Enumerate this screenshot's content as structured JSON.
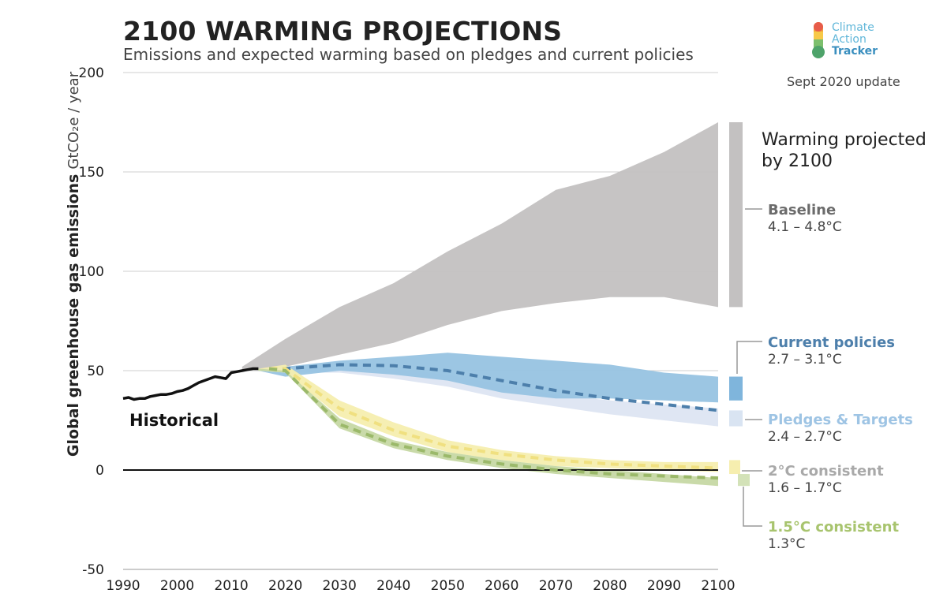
{
  "header": {
    "title": "2100 WARMING PROJECTIONS",
    "subtitle": "Emissions and expected warming based on pledges and current policies"
  },
  "logo": {
    "line1": "Climate",
    "line2": "Action",
    "line3": "Tracker",
    "icon": "thermometer-icon"
  },
  "update_label": "Sept 2020 update",
  "chart_data": {
    "type": "area",
    "ylabel_bold": "Global greenhouse gas emissions",
    "ylabel_unit": "GtCO₂e / year",
    "xlim": [
      1990,
      2100
    ],
    "ylim": [
      -50,
      200
    ],
    "x_ticks": [
      1990,
      2000,
      2010,
      2020,
      2030,
      2040,
      2050,
      2060,
      2070,
      2080,
      2090,
      2100
    ],
    "y_ticks": [
      -50,
      0,
      50,
      100,
      150,
      200
    ],
    "grid": "horizontal",
    "historical": {
      "label": "Historical",
      "color": "#111111",
      "x": [
        1990,
        1991,
        1992,
        1993,
        1994,
        1995,
        1996,
        1997,
        1998,
        1999,
        2000,
        2001,
        2002,
        2003,
        2004,
        2005,
        2006,
        2007,
        2008,
        2009,
        2010,
        2011,
        2012,
        2013,
        2014,
        2015
      ],
      "y": [
        36,
        36.5,
        35.5,
        36,
        36,
        37,
        37.5,
        38,
        38,
        38.5,
        39.5,
        40,
        41,
        42.5,
        44,
        45,
        46,
        47,
        46.5,
        46,
        49,
        49.5,
        50,
        50.5,
        51,
        51
      ]
    },
    "bands": [
      {
        "name": "Baseline",
        "color": "#c3c1c1",
        "x": [
          2012,
          2020,
          2030,
          2040,
          2050,
          2060,
          2070,
          2080,
          2090,
          2100
        ],
        "upper": [
          52,
          66,
          82,
          94,
          110,
          124,
          141,
          148,
          160,
          175
        ],
        "lower": [
          50,
          52,
          58,
          64,
          73,
          80,
          84,
          87,
          87,
          82
        ]
      },
      {
        "name": "Pledges & Targets",
        "color": "#dde5f2",
        "x": [
          2015,
          2020,
          2030,
          2040,
          2050,
          2060,
          2070,
          2080,
          2090,
          2100
        ],
        "upper": [
          51,
          50,
          52,
          51,
          48,
          43,
          38,
          35,
          33,
          31
        ],
        "lower": [
          50,
          49,
          49,
          46,
          42,
          36,
          32,
          28,
          25,
          22
        ]
      },
      {
        "name": "Current policies",
        "color": "#97c3e1",
        "x": [
          2015,
          2020,
          2030,
          2040,
          2050,
          2060,
          2070,
          2080,
          2090,
          2100
        ],
        "upper": [
          51,
          52,
          55,
          57,
          59,
          57,
          55,
          53,
          49,
          47
        ],
        "lower": [
          50,
          47,
          50,
          48,
          45,
          39,
          36,
          36,
          35,
          34
        ]
      },
      {
        "name": "2°C consistent",
        "color": "#f6eeaf",
        "x": [
          2015,
          2020,
          2030,
          2040,
          2050,
          2060,
          2070,
          2080,
          2090,
          2100
        ],
        "upper": [
          51,
          53,
          35,
          24,
          15,
          10,
          7,
          5,
          4,
          4
        ],
        "lower": [
          50,
          49,
          27,
          17,
          9,
          5,
          2,
          1,
          0,
          -1
        ]
      },
      {
        "name": "1.5°C consistent",
        "color": "#c6d8a4",
        "x": [
          2015,
          2020,
          2030,
          2040,
          2050,
          2060,
          2070,
          2080,
          2090,
          2100
        ],
        "upper": [
          51,
          50,
          26,
          15,
          9,
          5,
          2,
          0,
          -2,
          -4
        ],
        "lower": [
          50,
          49,
          21,
          11,
          5,
          1,
          -2,
          -4,
          -6,
          -8
        ]
      }
    ],
    "median_lines": [
      {
        "name": "Current policies",
        "color": "#4d7fab",
        "x": [
          2017,
          2020,
          2030,
          2040,
          2050,
          2060,
          2070,
          2080,
          2090,
          2100
        ],
        "y": [
          51,
          51,
          53,
          52.5,
          50,
          45,
          40,
          36,
          33,
          30
        ]
      },
      {
        "name": "2°C consistent",
        "color": "#f0e080",
        "x": [
          2017,
          2020,
          2030,
          2040,
          2050,
          2060,
          2070,
          2080,
          2090,
          2100
        ],
        "y": [
          51,
          51,
          31,
          20,
          12,
          8,
          5,
          3,
          2,
          1
        ]
      },
      {
        "name": "1.5°C consistent",
        "color": "#9bb96a",
        "x": [
          2017,
          2020,
          2030,
          2040,
          2050,
          2060,
          2070,
          2080,
          2090,
          2100
        ],
        "y": [
          51,
          50,
          23,
          13,
          7,
          3,
          0,
          -2,
          -3,
          -4
        ]
      }
    ],
    "right_bars": [
      {
        "name": "Baseline",
        "color": "#c3c1c1",
        "lo": 82,
        "hi": 175
      },
      {
        "name": "Current policies",
        "color": "#7fb5dc",
        "lo": 35,
        "hi": 47
      },
      {
        "name": "Pledges & Targets",
        "color": "#d9e4f2",
        "lo": 22,
        "hi": 30
      },
      {
        "name": "2°C consistent",
        "color": "#f6eeaf",
        "lo": -2,
        "hi": 5
      },
      {
        "name": "1.5°C consistent",
        "color": "#d3e2b8",
        "lo": -8,
        "hi": -2
      }
    ]
  },
  "warming": {
    "title": "Warming projected by 2100",
    "scenarios": [
      {
        "name": "Baseline",
        "range": "4.1 – 4.8°C",
        "color": "#6b6b6b"
      },
      {
        "name": "Current policies",
        "range": "2.7 – 3.1°C",
        "color": "#4d7fab"
      },
      {
        "name": "Pledges & Targets",
        "range": "2.4 – 2.7°C",
        "color": "#9ec4e4"
      },
      {
        "name": "2°C consistent",
        "range": "1.6 – 1.7°C",
        "color": "#a9a9a9"
      },
      {
        "name": "1.5°C consistent",
        "range": "1.3°C",
        "color": "#a8c46e"
      }
    ]
  }
}
